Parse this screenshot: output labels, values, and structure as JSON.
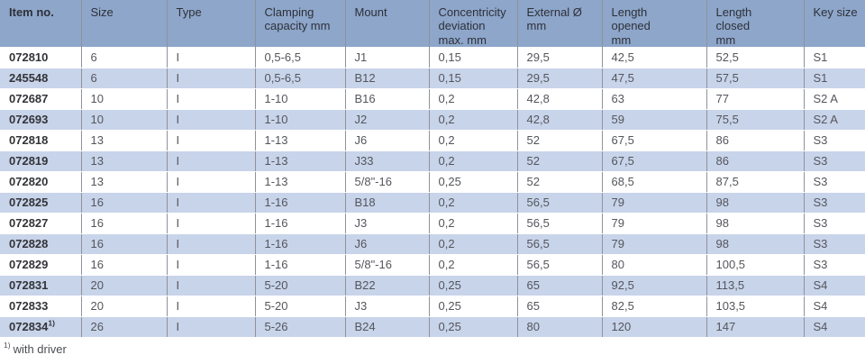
{
  "table": {
    "columns": [
      {
        "label": "Item no."
      },
      {
        "label": "Size"
      },
      {
        "label": "Type"
      },
      {
        "label": "Clamping\ncapacity mm"
      },
      {
        "label": "Mount"
      },
      {
        "label": "Concentricity\ndeviation\nmax. mm"
      },
      {
        "label": "External Ø\nmm"
      },
      {
        "label": "Length\nopened\nmm"
      },
      {
        "label": "Length\nclosed\nmm"
      },
      {
        "label": "Key size"
      }
    ],
    "rows": [
      {
        "cells": [
          "072810",
          "6",
          "I",
          "0,5-6,5",
          "J1",
          "0,15",
          "29,5",
          "42,5",
          "52,5",
          "S1"
        ],
        "sup": ""
      },
      {
        "cells": [
          "245548",
          "6",
          "I",
          "0,5-6,5",
          "B12",
          "0,15",
          "29,5",
          "47,5",
          "57,5",
          "S1"
        ],
        "sup": ""
      },
      {
        "cells": [
          "072687",
          "10",
          "I",
          "1-10",
          "B16",
          "0,2",
          "42,8",
          "63",
          "77",
          "S2 A"
        ],
        "sup": ""
      },
      {
        "cells": [
          "072693",
          "10",
          "I",
          "1-10",
          "J2",
          "0,2",
          "42,8",
          "59",
          "75,5",
          "S2 A"
        ],
        "sup": ""
      },
      {
        "cells": [
          "072818",
          "13",
          "I",
          "1-13",
          "J6",
          "0,2",
          "52",
          "67,5",
          "86",
          "S3"
        ],
        "sup": ""
      },
      {
        "cells": [
          "072819",
          "13",
          "I",
          "1-13",
          "J33",
          "0,2",
          "52",
          "67,5",
          "86",
          "S3"
        ],
        "sup": ""
      },
      {
        "cells": [
          "072820",
          "13",
          "I",
          "1-13",
          "5/8\"-16",
          "0,25",
          "52",
          "68,5",
          "87,5",
          "S3"
        ],
        "sup": ""
      },
      {
        "cells": [
          "072825",
          "16",
          "I",
          "1-16",
          "B18",
          "0,2",
          "56,5",
          "79",
          "98",
          "S3"
        ],
        "sup": ""
      },
      {
        "cells": [
          "072827",
          "16",
          "I",
          "1-16",
          "J3",
          "0,2",
          "56,5",
          "79",
          "98",
          "S3"
        ],
        "sup": ""
      },
      {
        "cells": [
          "072828",
          "16",
          "I",
          "1-16",
          "J6",
          "0,2",
          "56,5",
          "79",
          "98",
          "S3"
        ],
        "sup": ""
      },
      {
        "cells": [
          "072829",
          "16",
          "I",
          "1-16",
          "5/8\"-16",
          "0,2",
          "56,5",
          "80",
          "100,5",
          "S3"
        ],
        "sup": ""
      },
      {
        "cells": [
          "072831",
          "20",
          "I",
          "5-20",
          "B22",
          "0,25",
          "65",
          "92,5",
          "113,5",
          "S4"
        ],
        "sup": ""
      },
      {
        "cells": [
          "072833",
          "20",
          "I",
          "5-20",
          "J3",
          "0,25",
          "65",
          "82,5",
          "103,5",
          "S4"
        ],
        "sup": ""
      },
      {
        "cells": [
          "072834",
          "26",
          "I",
          "5-26",
          "B24",
          "0,25",
          "80",
          "120",
          "147",
          "S4"
        ],
        "sup": "1)"
      }
    ]
  },
  "footnote": {
    "marker": "1)",
    "text": "with driver"
  },
  "colors": {
    "header_bg": "#8da6ca",
    "row_alt_bg": "#c8d4ea",
    "row_bg": "#ffffff",
    "grid_line": "#8e929a",
    "header_text": "#2e3038",
    "cell_text": "#54565c",
    "item_text": "#333438"
  }
}
